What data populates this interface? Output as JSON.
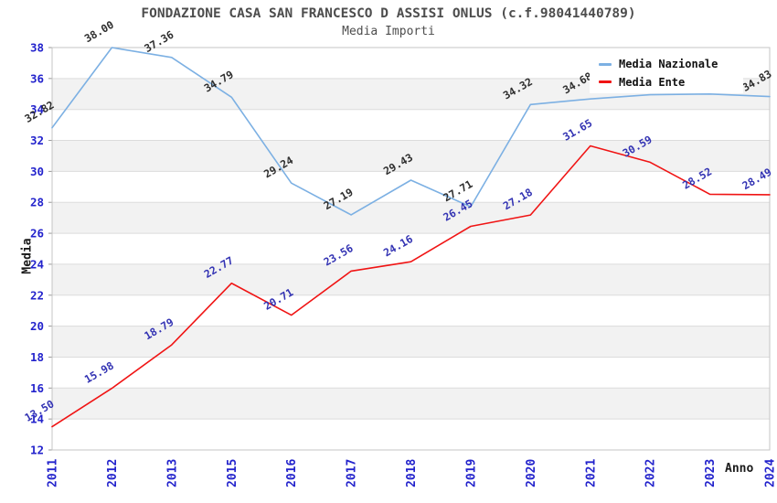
{
  "header": {
    "title": "FONDAZIONE CASA SAN FRANCESCO D ASSISI ONLUS (c.f.98041440789)",
    "subtitle": "Media Importi"
  },
  "legend": {
    "items": [
      {
        "label": "Media Nazionale",
        "color": "#7cb0e3"
      },
      {
        "label": "Media Ente",
        "color": "#f01414"
      }
    ]
  },
  "chart_data": {
    "type": "line",
    "title": "FONDAZIONE CASA SAN FRANCESCO D ASSISI ONLUS (c.f.98041440789)",
    "subtitle": "Media Importi",
    "xlabel": "Anno",
    "ylabel": "Media",
    "ylim": [
      12,
      38
    ],
    "yticks": [
      12,
      14,
      16,
      18,
      20,
      22,
      24,
      26,
      28,
      30,
      32,
      34,
      36,
      38
    ],
    "grid": "horizontal gridlines with alternating light-gray bands every 2 units",
    "legend_position": "top-right",
    "categories": [
      "2011",
      "2012",
      "2013",
      "2015",
      "2016",
      "2017",
      "2018",
      "2019",
      "2020",
      "2021",
      "2022",
      "2023",
      "2024"
    ],
    "series": [
      {
        "name": "Media Nazionale",
        "color": "#7cb0e3",
        "label_color": "#2e2e2e",
        "values": [
          32.82,
          38.0,
          37.36,
          34.79,
          29.24,
          27.19,
          29.43,
          27.71,
          34.32,
          34.68,
          34.95,
          35.0,
          34.83
        ],
        "labels": [
          "32.82",
          "38.00",
          "37.36",
          "34.79",
          "29.24",
          "27.19",
          "29.43",
          "27.71",
          "34.32",
          "34.68",
          null,
          null,
          "34.83"
        ]
      },
      {
        "name": "Media Ente",
        "color": "#f01414",
        "label_color": "#3333b3",
        "values": [
          13.5,
          15.98,
          18.79,
          22.77,
          20.71,
          23.56,
          24.16,
          26.45,
          27.18,
          31.65,
          30.59,
          28.52,
          28.49
        ],
        "labels": [
          "13.50",
          "15.98",
          "18.79",
          "22.77",
          "20.71",
          "23.56",
          "24.16",
          "26.45",
          "27.18",
          "31.65",
          "30.59",
          "28.52",
          "28.49"
        ]
      }
    ],
    "colors": {
      "tick_label": "#2323cc",
      "band_gray": "#f2f2f2",
      "gridline": "#dcdcdc",
      "border": "#c4c4c4",
      "axis_tick": "#999999",
      "title": "#4d4d4d"
    }
  }
}
